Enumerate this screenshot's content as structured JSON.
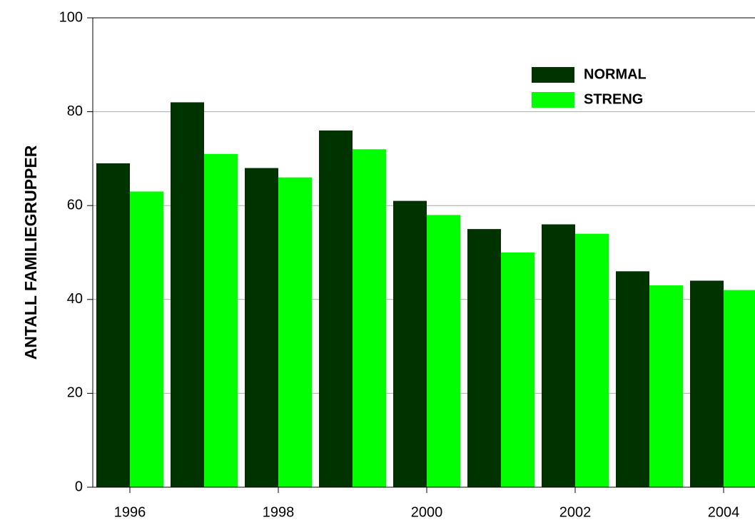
{
  "chart_data": {
    "type": "bar",
    "y_label": "ANTALL FAMILIEGRUPPER",
    "categories": [
      "1996",
      null,
      "1998",
      null,
      "2000",
      null,
      "2002",
      null,
      "2004"
    ],
    "series": [
      {
        "name": "NORMAL",
        "color": "#003300",
        "values": [
          69,
          82,
          68,
          76,
          61,
          55,
          56,
          46,
          44
        ]
      },
      {
        "name": "STRENG",
        "color": "#00ff00",
        "values": [
          63,
          71,
          66,
          72,
          58,
          50,
          54,
          43,
          42
        ]
      }
    ],
    "ylim": [
      0,
      100
    ],
    "yticks": [
      0,
      20,
      40,
      60,
      80,
      100
    ],
    "grid": true,
    "legend": "upper right"
  }
}
